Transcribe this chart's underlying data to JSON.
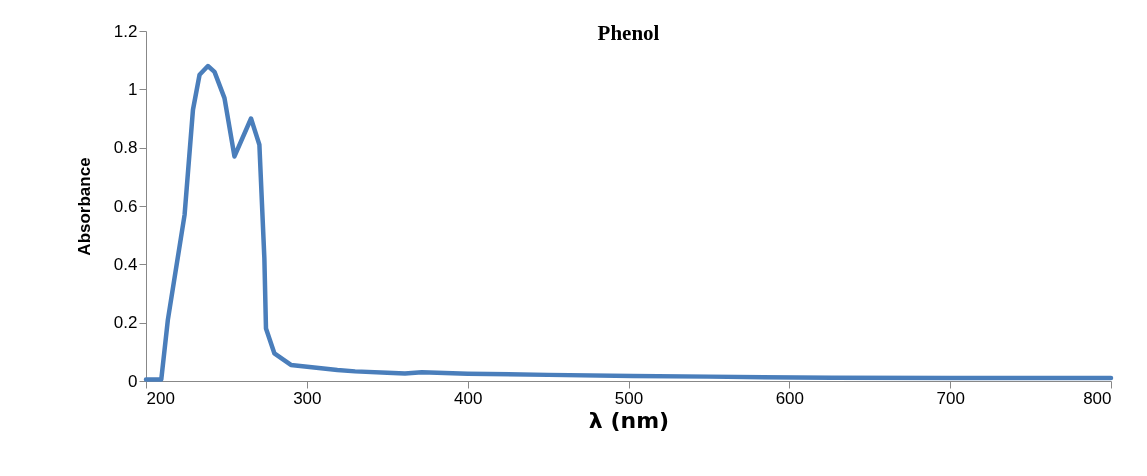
{
  "chart_data": {
    "type": "line",
    "title": "Phenol",
    "xlabel": "λ (nm)",
    "ylabel": "Absorbance",
    "xlim": [
      200,
      800
    ],
    "xticks": [
      200,
      300,
      400,
      500,
      600,
      700,
      800
    ],
    "ylim": [
      0,
      1.2
    ],
    "yticks": [
      0,
      0.2,
      0.4,
      0.6,
      0.8,
      1,
      1.2
    ],
    "grid": false,
    "marker": "none",
    "line_style": "solid",
    "series": [
      {
        "color": "#4a7ebb",
        "x": [
          200,
          209.5,
          213.6,
          224,
          229.2,
          233.3,
          238.5,
          242.6,
          248.8,
          255,
          265.3,
          270.5,
          273.6,
          274.6,
          279.8,
          290.1,
          319,
          330,
          350,
          361,
          371.5,
          400,
          450,
          502.5,
          550,
          626.5,
          700,
          800
        ],
        "values": [
          0.005,
          0.005,
          0.21,
          0.57,
          0.93,
          1.05,
          1.08,
          1.06,
          0.97,
          0.77,
          0.9,
          0.81,
          0.42,
          0.18,
          0.095,
          0.055,
          0.038,
          0.033,
          0.028,
          0.026,
          0.03,
          0.025,
          0.021,
          0.017,
          0.015,
          0.011,
          0.01,
          0.01
        ]
      }
    ]
  }
}
